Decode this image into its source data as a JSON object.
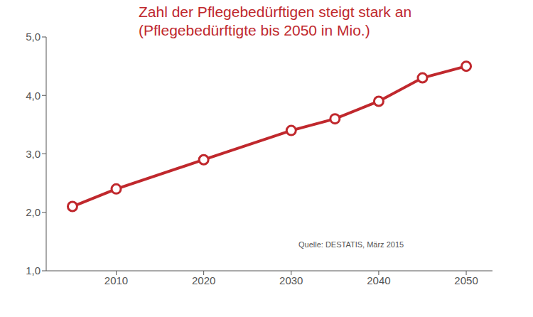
{
  "chart_data": {
    "type": "line",
    "title": "Zahl der Pflegebedürftigen steigt stark an",
    "subtitle": "(Pflegebedürftigte bis 2050 in Mio.)",
    "annotations": [
      "Quelle: DESTATIS, März 2015"
    ],
    "x": [
      2005,
      2010,
      2020,
      2030,
      2035,
      2040,
      2045,
      2050
    ],
    "values": [
      2.1,
      2.4,
      2.9,
      3.4,
      3.6,
      3.9,
      4.3,
      4.5
    ],
    "color": "#c0282d",
    "marker": "circle",
    "line_style": "solid",
    "xlim": [
      2002,
      2053
    ],
    "xticks": [
      2010,
      2020,
      2030,
      2040,
      2050
    ],
    "ylim": [
      1,
      5
    ],
    "yticks": [
      {
        "value": 1,
        "label": "1,0"
      },
      {
        "value": 2,
        "label": "2,0"
      },
      {
        "value": 3,
        "label": "3,0"
      },
      {
        "value": 4,
        "label": "4,0"
      },
      {
        "value": 5,
        "label": "5,0"
      }
    ],
    "grid": false
  }
}
